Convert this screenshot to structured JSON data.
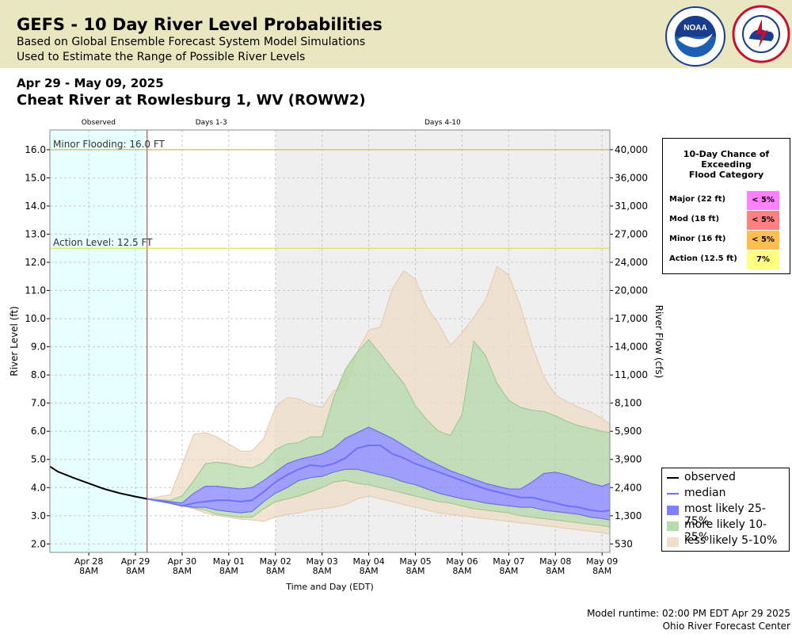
{
  "header": {
    "title": "GEFS - 10 Day River Level Probabilities",
    "subtitle1": "Based on Global Ensemble Forecast System Model Simulations",
    "subtitle2": "Used to Estimate the Range of Possible River Levels",
    "date_range": "Apr 29 - May 09, 2025",
    "station": "Cheat River at Rowlesburg 1, WV (ROWW2)",
    "logos": [
      "noaa-logo",
      "national-weather-service-logo"
    ]
  },
  "footer": {
    "runtime": "Model runtime: 02:00 PM EDT Apr 29 2025",
    "center": "Ohio River Forecast Center"
  },
  "probability_box": {
    "title_lines": [
      "10-Day Chance of",
      "Exceeding",
      "Flood Category"
    ],
    "rows": [
      {
        "label": "Major (22 ft)",
        "value": "< 5%",
        "color": "#ff80ff"
      },
      {
        "label": "Mod (18 ft)",
        "value": "< 5%",
        "color": "#ff8080"
      },
      {
        "label": "Minor (16 ft)",
        "value": "< 5%",
        "color": "#ffbe50"
      },
      {
        "label": "Action (12.5 ft)",
        "value": "7%",
        "color": "#ffff80"
      }
    ]
  },
  "legend": {
    "items": [
      {
        "label": "observed",
        "kind": "line",
        "color": "#000000"
      },
      {
        "label": "median",
        "kind": "line",
        "color": "#7070ff"
      },
      {
        "label": "most likely 25-75%",
        "kind": "box",
        "color": "#8080ff"
      },
      {
        "label": "more likely 10-25%",
        "kind": "box",
        "color": "#b5ddaa"
      },
      {
        "label": "less likely 5-10%",
        "kind": "box",
        "color": "#f1dfcd"
      }
    ]
  },
  "chart_data": {
    "type": "area",
    "xlabel": "Time and Day (EDT)",
    "ylabel": "River Level (ft)",
    "y2label": "River Flow (cfs)",
    "ylim": [
      1.7,
      16.7
    ],
    "yticks": [
      2.0,
      3.0,
      4.0,
      5.0,
      6.0,
      7.0,
      8.0,
      9.0,
      10.0,
      11.0,
      12.0,
      13.0,
      14.0,
      15.0,
      16.0
    ],
    "ytick_labels": [
      "2.0",
      "3.0",
      "4.0",
      "5.0",
      "6.0",
      "7.0",
      "8.0",
      "9.0",
      "10.0",
      "11.0",
      "12.0",
      "13.0",
      "14.0",
      "15.0",
      "16.0"
    ],
    "y2ticks": [
      {
        "stage": 2.0,
        "label": "530"
      },
      {
        "stage": 3.0,
        "label": "1,300"
      },
      {
        "stage": 4.0,
        "label": "2,400"
      },
      {
        "stage": 5.0,
        "label": "3,900"
      },
      {
        "stage": 6.0,
        "label": "5,900"
      },
      {
        "stage": 7.0,
        "label": "8,100"
      },
      {
        "stage": 8.0,
        "label": "11,000"
      },
      {
        "stage": 9.0,
        "label": "14,000"
      },
      {
        "stage": 10.0,
        "label": "17,000"
      },
      {
        "stage": 11.0,
        "label": "20,000"
      },
      {
        "stage": 12.0,
        "label": "24,000"
      },
      {
        "stage": 13.0,
        "label": "27,000"
      },
      {
        "stage": 14.0,
        "label": "31,000"
      },
      {
        "stage": 15.0,
        "label": "36,000"
      },
      {
        "stage": 16.0,
        "label": "40,000"
      }
    ],
    "x_range": [
      "2025-04-27 12:00",
      "2025-05-09 12:00"
    ],
    "x_ticks": [
      {
        "t": "2025-04-28 08:00",
        "line1": "Apr 28",
        "line2": "8AM"
      },
      {
        "t": "2025-04-29 08:00",
        "line1": "Apr 29",
        "line2": "8AM"
      },
      {
        "t": "2025-04-30 08:00",
        "line1": "Apr 30",
        "line2": "8AM"
      },
      {
        "t": "2025-05-01 08:00",
        "line1": "May 01",
        "line2": "8AM"
      },
      {
        "t": "2025-05-02 08:00",
        "line1": "May 02",
        "line2": "8AM"
      },
      {
        "t": "2025-05-03 08:00",
        "line1": "May 03",
        "line2": "8AM"
      },
      {
        "t": "2025-05-04 08:00",
        "line1": "May 04",
        "line2": "8AM"
      },
      {
        "t": "2025-05-05 08:00",
        "line1": "May 05",
        "line2": "8AM"
      },
      {
        "t": "2025-05-06 08:00",
        "line1": "May 06",
        "line2": "8AM"
      },
      {
        "t": "2025-05-07 08:00",
        "line1": "May 07",
        "line2": "8AM"
      },
      {
        "t": "2025-05-08 08:00",
        "line1": "May 08",
        "line2": "8AM"
      },
      {
        "t": "2025-05-09 08:00",
        "line1": "May 09",
        "line2": "8AM"
      }
    ],
    "periods": [
      {
        "label": "Observed",
        "start": "2025-04-27 12:00",
        "end": "2025-04-29 14:00",
        "color": "#e8ffff"
      },
      {
        "label": "Days 1-3",
        "start": "2025-04-29 14:00",
        "end": "2025-05-02 08:00",
        "color": "#ffffff"
      },
      {
        "label": "Days 4-10",
        "start": "2025-05-02 08:00",
        "end": "2025-05-09 12:00",
        "color": "#efefef"
      }
    ],
    "threshold_lines": [
      {
        "label": "Minor Flooding: 16.0 FT",
        "value": 16.0,
        "color": "#e8a040"
      },
      {
        "label": "Action Level: 12.5 FT",
        "value": 12.5,
        "color": "#e8d040"
      }
    ],
    "forecast_start": "2025-04-29 14:00",
    "observed": {
      "name": "observed",
      "x": [
        "2025-04-27 12:00",
        "2025-04-27 16:00",
        "2025-04-28 00:00",
        "2025-04-28 08:00",
        "2025-04-28 16:00",
        "2025-04-29 00:00",
        "2025-04-29 08:00",
        "2025-04-29 14:00"
      ],
      "y": [
        4.75,
        4.57,
        4.35,
        4.15,
        3.95,
        3.8,
        3.68,
        3.6
      ]
    },
    "forecast": {
      "x": [
        "2025-04-29 14:00",
        "2025-04-30 02:00",
        "2025-04-30 08:00",
        "2025-04-30 14:00",
        "2025-04-30 20:00",
        "2025-05-01 02:00",
        "2025-05-01 08:00",
        "2025-05-01 14:00",
        "2025-05-01 20:00",
        "2025-05-02 02:00",
        "2025-05-02 08:00",
        "2025-05-02 14:00",
        "2025-05-02 20:00",
        "2025-05-03 02:00",
        "2025-05-03 08:00",
        "2025-05-03 14:00",
        "2025-05-03 20:00",
        "2025-05-04 02:00",
        "2025-05-04 08:00",
        "2025-05-04 14:00",
        "2025-05-04 20:00",
        "2025-05-05 02:00",
        "2025-05-05 08:00",
        "2025-05-05 14:00",
        "2025-05-05 20:00",
        "2025-05-06 02:00",
        "2025-05-06 08:00",
        "2025-05-06 14:00",
        "2025-05-06 20:00",
        "2025-05-07 02:00",
        "2025-05-07 08:00",
        "2025-05-07 14:00",
        "2025-05-07 20:00",
        "2025-05-08 02:00",
        "2025-05-08 08:00",
        "2025-05-08 14:00",
        "2025-05-08 20:00",
        "2025-05-09 02:00",
        "2025-05-09 08:00",
        "2025-05-09 12:00"
      ],
      "p05": [
        3.6,
        3.45,
        3.35,
        3.25,
        3.1,
        3.0,
        2.95,
        2.88,
        2.85,
        2.8,
        2.95,
        3.05,
        3.1,
        3.2,
        3.25,
        3.3,
        3.4,
        3.6,
        3.7,
        3.6,
        3.5,
        3.4,
        3.3,
        3.2,
        3.1,
        3.05,
        3.0,
        2.95,
        2.9,
        2.85,
        2.8,
        2.75,
        2.7,
        2.65,
        2.6,
        2.55,
        2.5,
        2.45,
        2.4,
        2.35
      ],
      "p10": [
        3.6,
        3.45,
        3.35,
        3.28,
        3.2,
        3.05,
        3.0,
        2.95,
        2.95,
        3.25,
        3.5,
        3.6,
        3.7,
        3.85,
        4.0,
        4.2,
        4.25,
        4.15,
        4.1,
        4.0,
        3.9,
        3.8,
        3.7,
        3.6,
        3.5,
        3.45,
        3.35,
        3.25,
        3.2,
        3.15,
        3.1,
        3.0,
        2.95,
        2.9,
        2.85,
        2.8,
        2.75,
        2.7,
        2.65,
        2.6
      ],
      "p25": [
        3.6,
        3.45,
        3.35,
        3.3,
        3.3,
        3.2,
        3.15,
        3.1,
        3.15,
        3.5,
        3.8,
        4.0,
        4.25,
        4.35,
        4.4,
        4.55,
        4.65,
        4.65,
        4.55,
        4.45,
        4.35,
        4.2,
        4.1,
        3.95,
        3.8,
        3.7,
        3.6,
        3.55,
        3.45,
        3.4,
        3.35,
        3.3,
        3.3,
        3.2,
        3.15,
        3.1,
        3.05,
        2.95,
        2.9,
        2.85
      ],
      "median": [
        3.6,
        3.45,
        3.35,
        3.45,
        3.5,
        3.55,
        3.55,
        3.5,
        3.55,
        3.85,
        4.2,
        4.45,
        4.65,
        4.8,
        4.75,
        4.85,
        5.05,
        5.4,
        5.5,
        5.5,
        5.2,
        5.05,
        4.85,
        4.7,
        4.55,
        4.4,
        4.25,
        4.1,
        3.95,
        3.85,
        3.75,
        3.65,
        3.65,
        3.55,
        3.45,
        3.35,
        3.3,
        3.2,
        3.15,
        3.2
      ],
      "p75": [
        3.6,
        3.5,
        3.45,
        3.8,
        4.05,
        4.05,
        4.0,
        3.95,
        4.0,
        4.25,
        4.55,
        4.85,
        5.0,
        5.1,
        5.2,
        5.4,
        5.75,
        5.95,
        6.15,
        5.95,
        5.75,
        5.5,
        5.25,
        5.0,
        4.8,
        4.6,
        4.45,
        4.3,
        4.15,
        4.05,
        3.95,
        3.95,
        4.2,
        4.5,
        4.55,
        4.45,
        4.3,
        4.15,
        4.05,
        4.15
      ],
      "p90": [
        3.6,
        3.55,
        3.7,
        4.25,
        4.85,
        4.9,
        4.85,
        4.75,
        4.7,
        4.9,
        5.35,
        5.55,
        5.6,
        5.8,
        5.8,
        7.2,
        8.2,
        8.8,
        9.25,
        8.75,
        8.2,
        7.7,
        6.9,
        6.4,
        6.0,
        5.85,
        6.6,
        9.2,
        8.7,
        7.7,
        7.1,
        6.85,
        6.75,
        6.7,
        6.55,
        6.35,
        6.2,
        6.1,
        6.0,
        5.95
      ],
      "p95": [
        3.6,
        3.75,
        4.8,
        5.9,
        5.95,
        5.8,
        5.55,
        5.3,
        5.3,
        5.75,
        6.85,
        7.2,
        7.15,
        6.95,
        6.85,
        7.45,
        7.5,
        8.8,
        9.6,
        9.7,
        11.05,
        11.7,
        11.4,
        10.4,
        9.8,
        9.05,
        9.5,
        10.05,
        10.65,
        11.85,
        11.55,
        10.45,
        9.05,
        7.95,
        7.3,
        7.05,
        6.85,
        6.7,
        6.45,
        6.25
      ]
    }
  }
}
